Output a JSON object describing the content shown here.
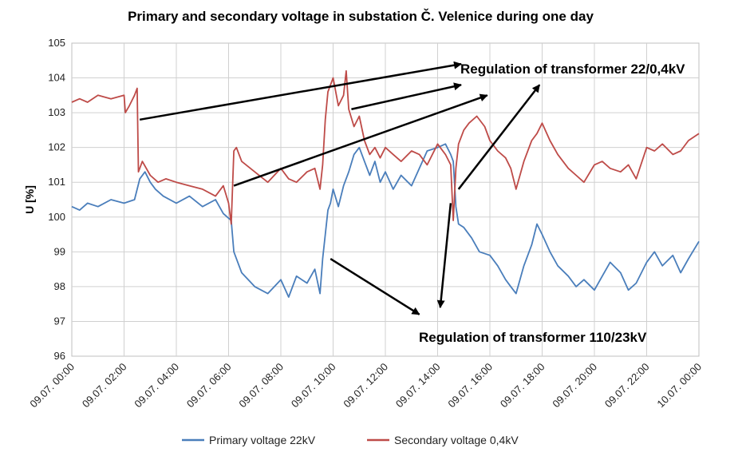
{
  "chart_data": {
    "type": "line",
    "title": "Primary and secondary voltage in substation Č. Velenice during one day",
    "ylabel": "U [%]",
    "xlabel": "",
    "ylim": [
      96,
      105
    ],
    "yticks": [
      96,
      97,
      98,
      99,
      100,
      101,
      102,
      103,
      104,
      105
    ],
    "xlim_hours": [
      0,
      24
    ],
    "x_unit": "hours from 09.07. 00:00",
    "xtick_labels": [
      "09.07. 00:00",
      "09.07. 02:00",
      "09.07. 04:00",
      "09.07. 06:00",
      "09.07. 08:00",
      "09.07. 10:00",
      "09.07. 12:00",
      "09.07. 14:00",
      "09.07. 16:00",
      "09.07. 18:00",
      "09.07. 20:00",
      "09.07. 22:00",
      "10.07. 00:00"
    ],
    "grid": true,
    "legend_position": "bottom",
    "series": [
      {
        "name": "Primary voltage 22kV",
        "color": "#4a7ebb",
        "x": [
          0,
          0.3,
          0.6,
          1,
          1.5,
          2,
          2.4,
          2.6,
          2.8,
          3.0,
          3.2,
          3.5,
          4,
          4.5,
          5,
          5.5,
          5.8,
          6.1,
          6.2,
          6.35,
          6.5,
          7,
          7.5,
          8,
          8.3,
          8.6,
          9,
          9.3,
          9.5,
          9.6,
          9.7,
          9.8,
          9.9,
          10,
          10.2,
          10.4,
          10.6,
          10.8,
          11,
          11.2,
          11.4,
          11.6,
          11.8,
          12,
          12.3,
          12.6,
          13,
          13.3,
          13.6,
          14,
          14.3,
          14.5,
          14.6,
          14.7,
          14.8,
          15,
          15.3,
          15.6,
          16,
          16.3,
          16.6,
          16.8,
          17,
          17.3,
          17.6,
          17.8,
          18,
          18.3,
          18.6,
          19,
          19.3,
          19.6,
          20,
          20.3,
          20.6,
          21,
          21.3,
          21.6,
          22,
          22.3,
          22.6,
          23,
          23.3,
          23.6,
          24
        ],
        "values": [
          100.3,
          100.2,
          100.4,
          100.3,
          100.5,
          100.4,
          100.5,
          101.1,
          101.3,
          101.0,
          100.8,
          100.6,
          100.4,
          100.6,
          100.3,
          100.5,
          100.1,
          99.9,
          99.0,
          98.7,
          98.4,
          98.0,
          97.8,
          98.2,
          97.7,
          98.3,
          98.1,
          98.5,
          97.8,
          98.8,
          99.5,
          100.2,
          100.4,
          100.8,
          100.3,
          100.9,
          101.3,
          101.8,
          102.0,
          101.6,
          101.2,
          101.6,
          101.0,
          101.3,
          100.8,
          101.2,
          100.9,
          101.4,
          101.9,
          102.0,
          102.1,
          101.8,
          101.6,
          100.3,
          99.8,
          99.7,
          99.4,
          99.0,
          98.9,
          98.6,
          98.2,
          98.0,
          97.8,
          98.6,
          99.2,
          99.8,
          99.5,
          99.0,
          98.6,
          98.3,
          98.0,
          98.2,
          97.9,
          98.3,
          98.7,
          98.4,
          97.9,
          98.1,
          98.7,
          99.0,
          98.6,
          98.9,
          98.4,
          98.8,
          99.3
        ]
      },
      {
        "name": "Secondary voltage 0,4kV",
        "color": "#be4b48",
        "x": [
          0,
          0.3,
          0.6,
          1,
          1.5,
          2,
          2.05,
          2.2,
          2.4,
          2.5,
          2.55,
          2.7,
          3.0,
          3.3,
          3.6,
          4,
          4.5,
          5,
          5.5,
          5.8,
          6.0,
          6.1,
          6.2,
          6.3,
          6.5,
          7,
          7.5,
          8,
          8.3,
          8.6,
          9,
          9.3,
          9.5,
          9.6,
          9.7,
          9.8,
          10,
          10.2,
          10.4,
          10.5,
          10.6,
          10.8,
          11,
          11.2,
          11.4,
          11.6,
          11.8,
          12,
          12.3,
          12.6,
          13,
          13.3,
          13.6,
          14,
          14.3,
          14.5,
          14.6,
          14.7,
          14.8,
          15,
          15.2,
          15.5,
          15.8,
          16,
          16.3,
          16.6,
          16.8,
          17,
          17.3,
          17.6,
          17.8,
          18,
          18.3,
          18.6,
          19,
          19.3,
          19.6,
          20,
          20.3,
          20.6,
          21,
          21.3,
          21.6,
          22,
          22.3,
          22.6,
          23,
          23.3,
          23.6,
          24
        ],
        "values": [
          103.3,
          103.4,
          103.3,
          103.5,
          103.4,
          103.5,
          103.0,
          103.2,
          103.5,
          103.7,
          101.3,
          101.6,
          101.2,
          101.0,
          101.1,
          101.0,
          100.9,
          100.8,
          100.6,
          100.9,
          100.4,
          99.8,
          101.9,
          102.0,
          101.6,
          101.3,
          101.0,
          101.4,
          101.1,
          101.0,
          101.3,
          101.4,
          100.8,
          101.5,
          102.8,
          103.6,
          104.0,
          103.2,
          103.5,
          104.2,
          103.1,
          102.6,
          102.9,
          102.2,
          101.8,
          102.0,
          101.7,
          102.0,
          101.8,
          101.6,
          101.9,
          101.8,
          101.5,
          102.1,
          101.8,
          101.5,
          99.9,
          101.4,
          102.1,
          102.5,
          102.7,
          102.9,
          102.6,
          102.2,
          101.9,
          101.7,
          101.4,
          100.8,
          101.6,
          102.2,
          102.4,
          102.7,
          102.2,
          101.8,
          101.4,
          101.2,
          101.0,
          101.5,
          101.6,
          101.4,
          101.3,
          101.5,
          101.1,
          102.0,
          101.9,
          102.1,
          101.8,
          101.9,
          102.2,
          102.4
        ]
      }
    ],
    "annotations": [
      {
        "text": "Regulation of transformer 22/0,4kV",
        "arrows": [
          {
            "from": [
              2.6,
              102.8
            ],
            "to": [
              14.9,
              104.4
            ]
          },
          {
            "from": [
              10.7,
              103.1
            ],
            "to": [
              14.9,
              103.8
            ]
          },
          {
            "from": [
              6.2,
              100.9
            ],
            "to": [
              15.9,
              103.5
            ]
          },
          {
            "from": [
              14.8,
              100.8
            ],
            "to": [
              17.9,
              103.8
            ]
          }
        ]
      },
      {
        "text": "Regulation of transformer 110/23kV",
        "arrows": [
          {
            "from": [
              9.9,
              98.8
            ],
            "to": [
              13.3,
              97.2
            ]
          },
          {
            "from": [
              14.5,
              100.4
            ],
            "to": [
              14.1,
              97.4
            ]
          }
        ]
      }
    ]
  }
}
